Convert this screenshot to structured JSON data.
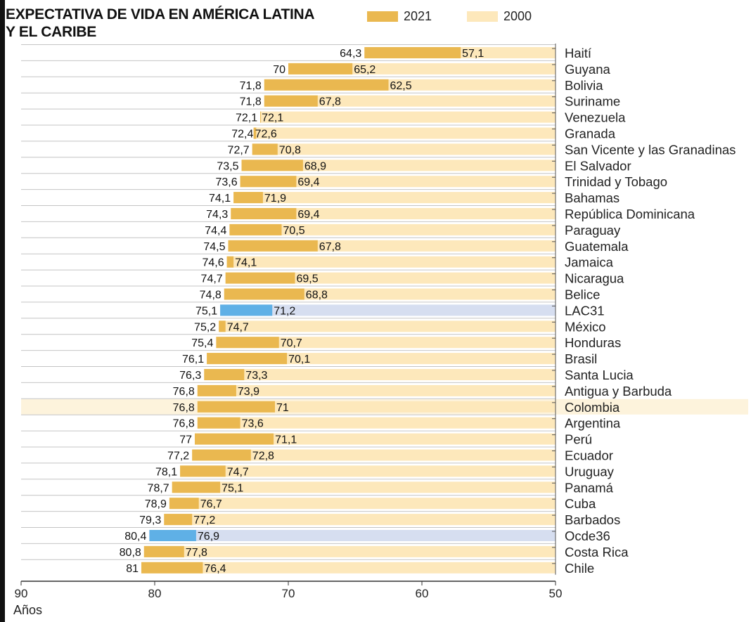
{
  "title": {
    "line1": "EXPECTATIVA DE VIDA EN AMÉRICA LATINA",
    "line2": "Y EL CARIBE"
  },
  "legend": [
    {
      "label": "2021",
      "color": "#eab850"
    },
    {
      "label": "2000",
      "color": "#fde8bb"
    }
  ],
  "colors": {
    "bar_2021": "#eab850",
    "bar_2000": "#fde8bb",
    "aggregate_2021": "#5fb0e6",
    "aggregate_2000": "#d6def0",
    "highlight_band": "#fdf3dc"
  },
  "chart_data": {
    "type": "bar",
    "orientation": "horizontal",
    "xlabel": "Años",
    "x_axis_reversed": true,
    "xlim": [
      90,
      50
    ],
    "xticks": [
      90,
      80,
      70,
      60,
      50
    ],
    "highlighted_category": "Colombia",
    "aggregate_categories": [
      "LAC31",
      "Ocde36"
    ],
    "categories": [
      "Haití",
      "Guyana",
      "Bolivia",
      "Suriname",
      "Venezuela",
      "Granada",
      "San Vicente y las Granadinas",
      "El Salvador",
      "Trinidad y Tobago",
      "Bahamas",
      "República Dominicana",
      "Paraguay",
      "Guatemala",
      "Jamaica",
      "Nicaragua",
      "Belice",
      "LAC31",
      "México",
      "Honduras",
      "Brasil",
      "Santa Lucia",
      "Antigua y Barbuda",
      "Colombia",
      "Argentina",
      "Perú",
      "Ecuador",
      "Uruguay",
      "Panamá",
      "Cuba",
      "Barbados",
      "Ocde36",
      "Costa Rica",
      "Chile"
    ],
    "series": [
      {
        "name": "2021",
        "values": [
          64.3,
          70,
          71.8,
          71.8,
          72.1,
          72.4,
          72.7,
          73.5,
          73.6,
          74.1,
          74.3,
          74.4,
          74.5,
          74.6,
          74.7,
          74.8,
          75.1,
          75.2,
          75.4,
          76.1,
          76.3,
          76.8,
          76.8,
          76.8,
          77,
          77.2,
          78.1,
          78.7,
          78.9,
          79.3,
          80.4,
          80.8,
          81
        ]
      },
      {
        "name": "2000",
        "values": [
          57.1,
          65.2,
          62.5,
          67.8,
          72.1,
          72.6,
          70.8,
          68.9,
          69.4,
          71.9,
          69.4,
          70.5,
          67.8,
          74.1,
          69.5,
          68.8,
          71.2,
          74.7,
          70.7,
          70.1,
          73.3,
          73.9,
          71,
          73.6,
          71.1,
          72.8,
          74.7,
          75.1,
          76.7,
          77.2,
          76.9,
          77.8,
          76.4
        ]
      }
    ],
    "value_labels_2021": [
      "64,3",
      "70",
      "71,8",
      "71,8",
      "72,1",
      "72,4",
      "72,7",
      "73,5",
      "73,6",
      "74,1",
      "74,3",
      "74,4",
      "74,5",
      "74,6",
      "74,7",
      "74,8",
      "75,1",
      "75,2",
      "75,4",
      "76,1",
      "76,3",
      "76,8",
      "76,8",
      "76,8",
      "77",
      "77,2",
      "78,1",
      "78,7",
      "78,9",
      "79,3",
      "80,4",
      "80,8",
      "81"
    ],
    "value_labels_2000": [
      "57,1",
      "65,2",
      "62,5",
      "67,8",
      "72,1",
      "72,6",
      "70,8",
      "68,9",
      "69,4",
      "71,9",
      "69,4",
      "70,5",
      "67,8",
      "74,1",
      "69,5",
      "68,8",
      "71,2",
      "74,7",
      "70,7",
      "70,1",
      "73,3",
      "73,9",
      "71",
      "73,6",
      "71,1",
      "72,8",
      "74,7",
      "75,1",
      "76,7",
      "77,2",
      "76,9",
      "77,8",
      "76,4"
    ]
  }
}
